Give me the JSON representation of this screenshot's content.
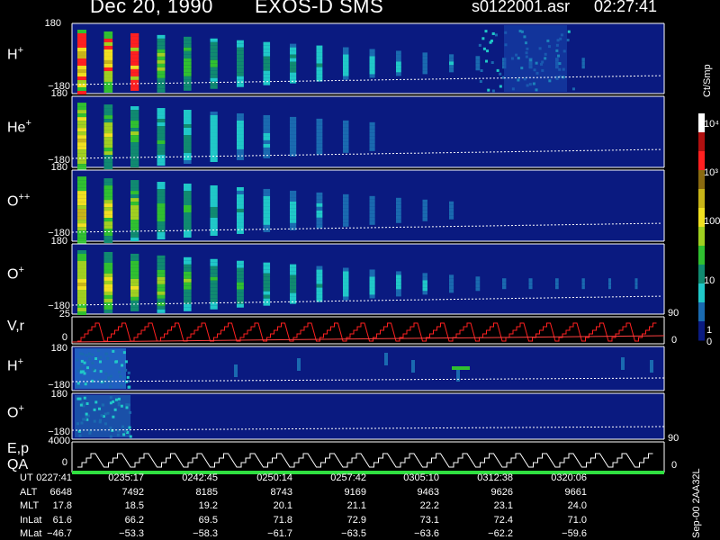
{
  "header": {
    "date": "Dec 20, 1990",
    "instrument": "EXOS-D SMS",
    "file": "s0122001.asr",
    "time": "02:27:41"
  },
  "colorbar": {
    "unit": "Ct/Smp",
    "ticks": [
      "10⁴",
      "10³",
      "100",
      "10",
      "1",
      "0"
    ],
    "colors": [
      "#ffffff",
      "#b01010",
      "#ff2020",
      "#8a6a10",
      "#c8b418",
      "#f0e020",
      "#a0d020",
      "#30c030",
      "#108a70",
      "#20c8c8",
      "#1a6ab0",
      "#0a1a80"
    ]
  },
  "panels": [
    {
      "label": "H",
      "charge": "+",
      "ymax": "180",
      "ymin": "−180"
    },
    {
      "label": "He",
      "charge": "+",
      "ymax": "180",
      "ymin": "−180"
    },
    {
      "label": "O",
      "charge": "++",
      "ymax": "180",
      "ymin": "−180"
    },
    {
      "label": "O",
      "charge": "+",
      "ymax": "180",
      "ymin": "−180"
    },
    {
      "label": "V,r",
      "charge": "",
      "ymax": "25",
      "ymid": "0",
      "right": "90",
      "right2": "0"
    },
    {
      "label": "H",
      "charge": "+",
      "ymax": "180",
      "ymin": "−180"
    },
    {
      "label": "O",
      "charge": "+",
      "ymax": "180",
      "ymin": "−180"
    },
    {
      "label": "E,p",
      "label2": "QA",
      "charge": "",
      "ymax": "4000",
      "ymid": "0",
      "right": "90",
      "right2": "0"
    }
  ],
  "side_note": "Sep-00 2AA32L",
  "ephemeris": {
    "labels": [
      "UT",
      "ALT",
      "MLT",
      "InLat",
      "MLat"
    ],
    "columns": [
      {
        "UT": "0227:41",
        "ALT": "6648",
        "MLT": "17.8",
        "InLat": "61.6",
        "MLat": "−46.7"
      },
      {
        "UT": "0235:17",
        "ALT": "7492",
        "MLT": "18.5",
        "InLat": "66.2",
        "MLat": "−53.3"
      },
      {
        "UT": "0242:45",
        "ALT": "8185",
        "MLT": "19.2",
        "InLat": "69.5",
        "MLat": "−58.3"
      },
      {
        "UT": "0250:14",
        "ALT": "8743",
        "MLT": "20.1",
        "InLat": "71.8",
        "MLat": "−61.7"
      },
      {
        "UT": "0257:42",
        "ALT": "9169",
        "MLT": "21.1",
        "InLat": "72.9",
        "MLat": "−63.5"
      },
      {
        "UT": "0305:10",
        "ALT": "9463",
        "MLT": "22.2",
        "InLat": "73.1",
        "MLat": "−63.6"
      },
      {
        "UT": "0312:38",
        "ALT": "9626",
        "MLT": "23.1",
        "InLat": "72.4",
        "MLat": "−62.2"
      },
      {
        "UT": "0320:06",
        "ALT": "9661",
        "MLT": "24.0",
        "InLat": "71.0",
        "MLat": "−59.6"
      }
    ]
  },
  "chart_data": {
    "type": "heatmap",
    "title": "Dec 20, 1990   EXOS-D SMS",
    "x_ticks": [
      "0227:41",
      "0235:17",
      "0242:45",
      "0250:14",
      "0257:42",
      "0305:10",
      "0312:38",
      "0320:06"
    ],
    "series": [
      {
        "name": "H+",
        "ylim": [
          -180,
          180
        ]
      },
      {
        "name": "He+",
        "ylim": [
          -180,
          180
        ]
      },
      {
        "name": "O++",
        "ylim": [
          -180,
          180
        ]
      },
      {
        "name": "O+",
        "ylim": [
          -180,
          180
        ]
      },
      {
        "name": "V,r",
        "ylim": [
          0,
          25
        ]
      },
      {
        "name": "H+",
        "ylim": [
          -180,
          180
        ]
      },
      {
        "name": "O+",
        "ylim": [
          -180,
          180
        ]
      },
      {
        "name": "E,p",
        "ylim": [
          0,
          4000
        ]
      }
    ],
    "colorscale": {
      "unit": "Ct/Smp",
      "range": [
        0,
        10000
      ],
      "scale": "log"
    }
  }
}
